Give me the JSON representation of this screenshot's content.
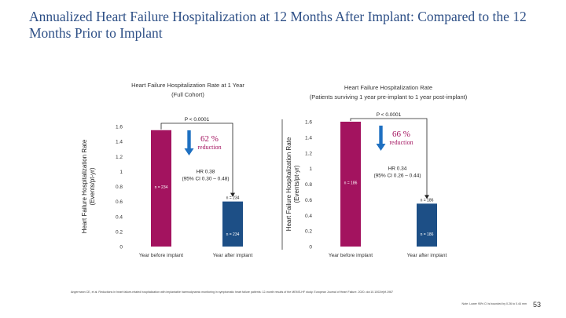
{
  "title": "Annualized Heart Failure Hospitalization at 12 Months After Implant: Compared to the 12 Months Prior to Implant",
  "footnote": "Angermann CE, et al. Reductions in heart failure-related hospitalization with implantable haemodynamic monitoring in symptomatic heart failure patients: 12-month results of the MEMS-HF study. European Journal of Heart Failure. 2020. doi:10.1002/ejhf.1967",
  "footnote_right": "Note: Lower 95% CI is bounded by 0.26 to 0.44 mm",
  "page_number": "53",
  "colors": {
    "bar_before": "#a3135f",
    "bar_after": "#1d4f86",
    "arrow": "#1e70c1"
  },
  "chart_data": [
    {
      "type": "bar",
      "title": "Heart Failure Hospitalization Rate at 1 Year",
      "subtitle": "(Full Cohort)",
      "ylabel": "Heart Failure Hospitalization Rate (Events/pt-yr)",
      "ylim": [
        0,
        1.6
      ],
      "yticks": [
        0,
        0.2,
        0.4,
        0.6,
        0.8,
        1,
        1.2,
        1.4,
        1.6
      ],
      "categories": [
        "Year before implant",
        "Year after implant"
      ],
      "values": [
        1.55,
        0.6
      ],
      "n_labels": [
        "n = 234",
        "n = 234"
      ],
      "n_labels_low": [
        "",
        "n = 234"
      ],
      "p_value": "P < 0.0001",
      "reduction_pct": "62 %",
      "reduction_word": "reduction",
      "hr_line1": "HR 0.38",
      "hr_line2": "(95% CI 0.30 – 0.48)"
    },
    {
      "type": "bar",
      "title": "Heart Failure Hospitalization Rate",
      "subtitle": "(Patients surviving 1 year pre-implant to 1 year post-implant)",
      "ylabel": "Heart Failure Hospitalization Rate (Events/pt-yr)",
      "ylim": [
        0,
        1.6
      ],
      "yticks": [
        0,
        0.2,
        0.4,
        0.6,
        0.8,
        1,
        1.2,
        1.4,
        1.6
      ],
      "categories": [
        "Year before implant",
        "Year after implant"
      ],
      "values": [
        1.6,
        0.55
      ],
      "n_labels": [
        "n = 186",
        "n = 186"
      ],
      "n_labels_low": [
        "",
        "n = 186"
      ],
      "p_value": "P < 0.0001",
      "reduction_pct": "66 %",
      "reduction_word": "reduction",
      "hr_line1": "HR 0.34",
      "hr_line2": "(95% CI 0.26 – 0.44)"
    }
  ]
}
